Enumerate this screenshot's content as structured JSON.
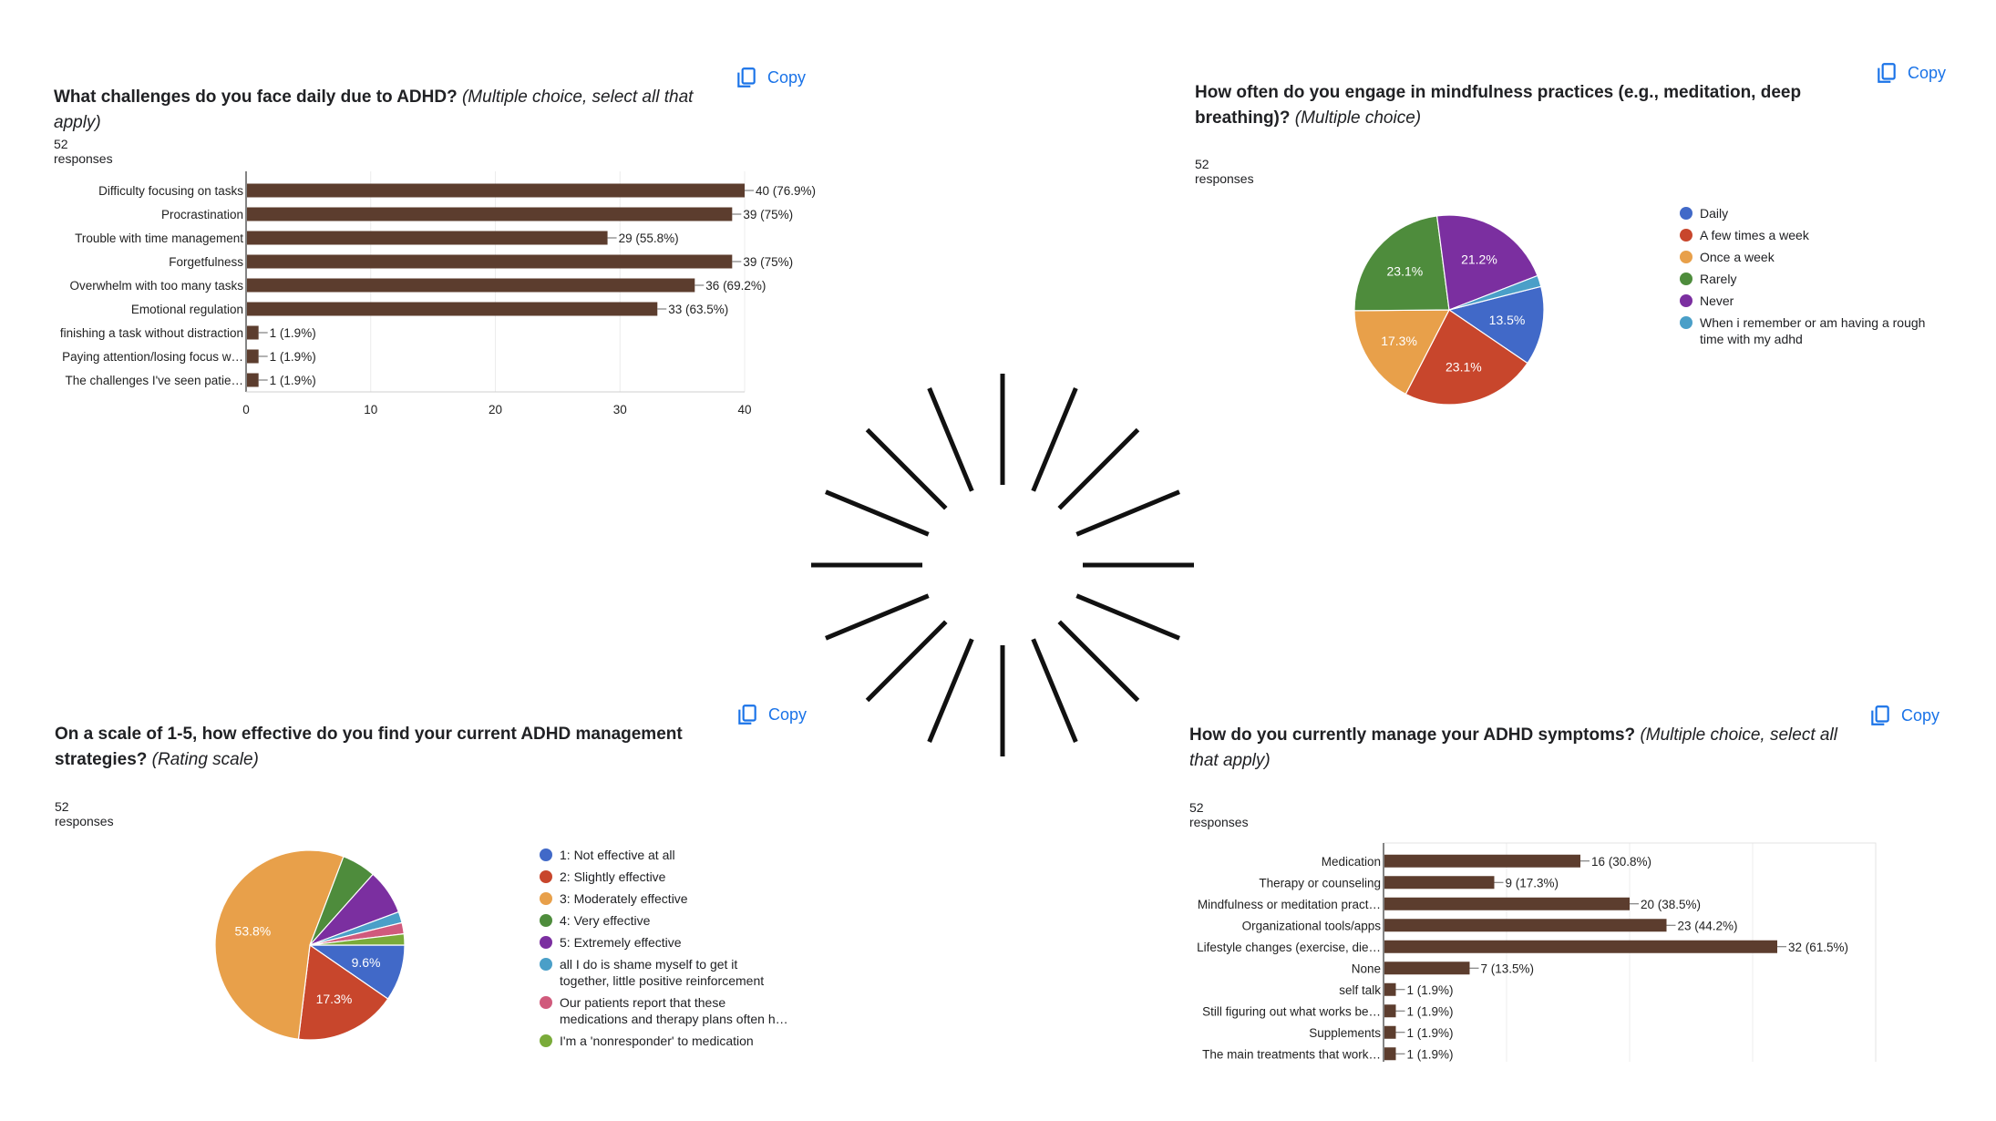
{
  "copy_label": "Copy",
  "colors": {
    "bar": "#5c3d2e",
    "link": "#1a73e8",
    "pie": [
      "#4169c8",
      "#c8462c",
      "#e8a04a",
      "#4e8c3c",
      "#7b2fa0",
      "#4a9fc8",
      "#d05a7c",
      "#7aab3a"
    ]
  },
  "q1": {
    "title": "What challenges do you face daily due to ADHD?",
    "type_label": "(Multiple choice, select all that apply)",
    "responses": "52 responses",
    "chart_data": {
      "type": "bar",
      "orientation": "horizontal",
      "categories": [
        "Difficulty focusing on tasks",
        "Procrastination",
        "Trouble with time management",
        "Forgetfulness",
        "Overwhelm with too many tasks",
        "Emotional regulation",
        "finishing a task without distraction",
        "Paying attention/losing focus w…",
        "The challenges I've seen patie…"
      ],
      "values": [
        40,
        39,
        29,
        39,
        36,
        33,
        1,
        1,
        1
      ],
      "data_labels": [
        "40 (76.9%)",
        "39 (75%)",
        "29 (55.8%)",
        "39 (75%)",
        "36 (69.2%)",
        "33 (63.5%)",
        "1 (1.9%)",
        "1 (1.9%)",
        "1 (1.9%)"
      ],
      "xlim": [
        0,
        40
      ],
      "xticks": [
        0,
        10,
        20,
        30,
        40
      ]
    }
  },
  "q2": {
    "title": "How often do you engage in mindfulness practices (e.g., meditation, deep breathing)?",
    "type_label": "(Multiple choice)",
    "responses": "52 responses",
    "chart_data": {
      "type": "pie",
      "categories": [
        "Daily",
        "A few times a week",
        "Once a week",
        "Rarely",
        "Never",
        "When i remember or am having a rough time with my adhd"
      ],
      "values": [
        13.5,
        23.1,
        17.3,
        23.1,
        21.2,
        1.9
      ],
      "slice_labels": [
        "13.5%",
        "23.1%",
        "17.3%",
        "23.1%",
        "21.2%",
        ""
      ]
    }
  },
  "q3": {
    "title": "On a scale of 1-5, how effective do you find your current ADHD management strategies?",
    "type_label": "(Rating scale)",
    "responses": "52 responses",
    "chart_data": {
      "type": "pie",
      "categories": [
        "1: Not effective at all",
        "2: Slightly effective",
        "3: Moderately effective",
        "4: Very effective",
        "5: Extremely effective",
        "all I do is shame myself to get it together, little positive reinforcement",
        "Our patients report that these medications and therapy plans often h…",
        "I'm a 'nonresponder' to medication"
      ],
      "values": [
        9.6,
        17.3,
        53.8,
        5.8,
        7.7,
        1.9,
        1.9,
        1.9
      ],
      "slice_labels": [
        "9.6%",
        "17.3%",
        "53.8%",
        "",
        "",
        "",
        "",
        ""
      ]
    }
  },
  "q4": {
    "title": "How do you currently manage your ADHD symptoms?",
    "type_label": "(Multiple choice, select all that apply)",
    "responses": "52 responses",
    "chart_data": {
      "type": "bar",
      "orientation": "horizontal",
      "categories": [
        "Medication",
        "Therapy or counseling",
        "Mindfulness or meditation pract…",
        "Organizational tools/apps",
        "Lifestyle changes (exercise, die…",
        "None",
        "self talk",
        "Still figuring out what works be…",
        "Supplements",
        "The main treatments that work…"
      ],
      "values": [
        16,
        9,
        20,
        23,
        32,
        7,
        1,
        1,
        1,
        1
      ],
      "data_labels": [
        "16 (30.8%)",
        "9 (17.3%)",
        "20 (38.5%)",
        "23 (44.2%)",
        "32 (61.5%)",
        "7 (13.5%)",
        "1 (1.9%)",
        "1 (1.9%)",
        "1 (1.9%)",
        "1 (1.9%)"
      ],
      "xlim": [
        0,
        40
      ]
    }
  }
}
